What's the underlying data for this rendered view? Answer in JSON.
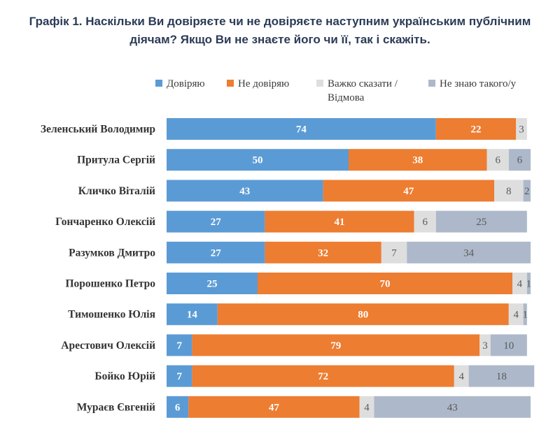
{
  "title_line1": "Графік 1. Наскільки Ви довіряєте чи не довіряєте наступним українським публічним",
  "title_line2": "діячам? Якщо Ви не знаєте його чи її, так і скажіть.",
  "colors": {
    "trust": "#5b9bd5",
    "distrust": "#ed7d31",
    "hard": "#dedede",
    "unknown": "#adb9ca"
  },
  "chart_data": {
    "type": "bar",
    "orientation": "horizontal",
    "stacked": true,
    "title": "Графік 1. Наскільки Ви довіряєте чи не довіряєте наступним українським публічним діячам? Якщо Ви не знаєте його чи її, так і скажіть.",
    "legend_position": "top",
    "categories": [
      "Зеленський Володимир",
      "Притула Сергій",
      "Кличко Віталій",
      "Гончаренко Олексій",
      "Разумков Дмитро",
      "Порошенко Петро",
      "Тимошенко Юлія",
      "Арестович Олексій",
      "Бойко Юрій",
      "Мураєв Євгеній"
    ],
    "series": [
      {
        "name": "Довіряю",
        "color_key": "trust",
        "values": [
          74,
          50,
          43,
          27,
          27,
          25,
          14,
          7,
          7,
          6
        ]
      },
      {
        "name": "Не довіряю",
        "color_key": "distrust",
        "values": [
          22,
          38,
          47,
          41,
          32,
          70,
          80,
          79,
          72,
          47
        ]
      },
      {
        "name": "Важко сказати / Відмова",
        "legend_lines": [
          "Важко сказати /",
          "Відмова"
        ],
        "color_key": "hard",
        "values": [
          3,
          6,
          8,
          6,
          7,
          4,
          4,
          3,
          4,
          4
        ]
      },
      {
        "name": "Не знаю такого/у",
        "color_key": "unknown",
        "values": [
          null,
          6,
          2,
          25,
          34,
          1,
          1,
          10,
          18,
          43
        ]
      }
    ]
  }
}
